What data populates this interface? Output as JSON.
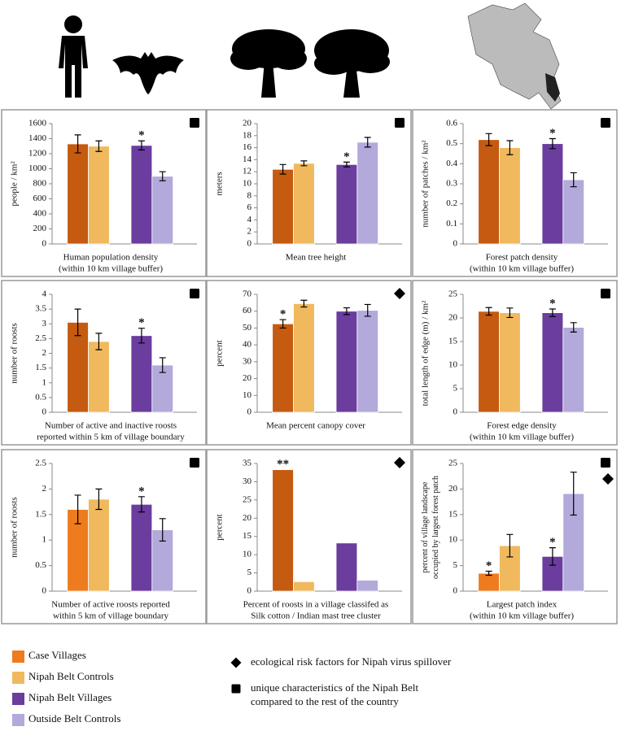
{
  "chart_data": [
    {
      "type": "bar",
      "ylabel": [
        "people / km²"
      ],
      "xlabel": [
        "Human population density",
        "(within 10 km village buffer)"
      ],
      "values": [
        1330,
        1300,
        1310,
        900
      ],
      "errors": [
        120,
        70,
        60,
        60
      ],
      "stars": [
        null,
        null,
        "*",
        null
      ],
      "colors": [
        "#c55a11",
        "#f0b95e",
        "#6a3d9e",
        "#b3a9da"
      ],
      "ylim": [
        0,
        1600
      ],
      "yticks": [
        0,
        200,
        400,
        600,
        800,
        1000,
        1200,
        1400,
        1600
      ],
      "markers": [
        "square"
      ]
    },
    {
      "type": "bar",
      "ylabel": [
        "meters"
      ],
      "xlabel": [
        "Mean tree height"
      ],
      "values": [
        12.4,
        13.4,
        13.2,
        16.9
      ],
      "errors": [
        0.8,
        0.4,
        0.4,
        0.8
      ],
      "stars": [
        null,
        null,
        "*",
        null
      ],
      "colors": [
        "#c55a11",
        "#f0b95e",
        "#6a3d9e",
        "#b3a9da"
      ],
      "ylim": [
        0,
        20
      ],
      "yticks": [
        0,
        2,
        4,
        6,
        8,
        10,
        12,
        14,
        16,
        18,
        20
      ],
      "markers": [
        "square"
      ]
    },
    {
      "type": "bar",
      "ylabel": [
        "number of patches / km²"
      ],
      "xlabel": [
        "Forest patch density",
        "(within 10 km village buffer)"
      ],
      "values": [
        0.52,
        0.48,
        0.5,
        0.32
      ],
      "errors": [
        0.03,
        0.035,
        0.025,
        0.035
      ],
      "stars": [
        null,
        null,
        "*",
        null
      ],
      "colors": [
        "#c55a11",
        "#f0b95e",
        "#6a3d9e",
        "#b3a9da"
      ],
      "ylim": [
        0,
        0.6
      ],
      "yticks": [
        0,
        0.1,
        0.2,
        0.3,
        0.4,
        0.5,
        0.6
      ],
      "markers": [
        "square"
      ]
    },
    {
      "type": "bar",
      "ylabel": [
        "number of roosts"
      ],
      "xlabel": [
        "Number of active and inactive roosts",
        "reported within 5 km of village boundary"
      ],
      "values": [
        3.05,
        2.4,
        2.6,
        1.6
      ],
      "errors": [
        0.45,
        0.28,
        0.25,
        0.25
      ],
      "stars": [
        null,
        null,
        "*",
        null
      ],
      "colors": [
        "#c55a11",
        "#f0b95e",
        "#6a3d9e",
        "#b3a9da"
      ],
      "ylim": [
        0,
        4
      ],
      "yticks": [
        0,
        0.5,
        1,
        1.5,
        2,
        2.5,
        3,
        3.5,
        4
      ],
      "markers": [
        "square"
      ]
    },
    {
      "type": "bar",
      "ylabel": [
        "percent"
      ],
      "xlabel": [
        "Mean percent canopy cover"
      ],
      "values": [
        52.5,
        64.5,
        60,
        60.5
      ],
      "errors": [
        2.5,
        2,
        2,
        3.5
      ],
      "stars": [
        "*",
        null,
        null,
        null
      ],
      "colors": [
        "#c55a11",
        "#f0b95e",
        "#6a3d9e",
        "#b3a9da"
      ],
      "ylim": [
        0,
        70
      ],
      "yticks": [
        0,
        10,
        20,
        30,
        40,
        50,
        60,
        70
      ],
      "markers": [
        "diamond"
      ]
    },
    {
      "type": "bar",
      "ylabel": [
        "total length of edge (m) / km²"
      ],
      "xlabel": [
        "Forest edge density",
        "(within 10 km village buffer)"
      ],
      "values": [
        21.4,
        21.1,
        21.1,
        18
      ],
      "errors": [
        0.8,
        1,
        0.8,
        1
      ],
      "stars": [
        null,
        null,
        "*",
        null
      ],
      "colors": [
        "#c55a11",
        "#f0b95e",
        "#6a3d9e",
        "#b3a9da"
      ],
      "ylim": [
        0,
        25
      ],
      "yticks": [
        0,
        5,
        10,
        15,
        20,
        25
      ],
      "markers": [
        "square"
      ]
    },
    {
      "type": "bar",
      "ylabel": [
        "number of roosts"
      ],
      "xlabel": [
        "Number of active roosts reported",
        "within 5 km of village boundary"
      ],
      "values": [
        1.6,
        1.8,
        1.7,
        1.2
      ],
      "errors": [
        0.28,
        0.2,
        0.15,
        0.22
      ],
      "stars": [
        null,
        null,
        "*",
        null
      ],
      "colors": [
        "#ee7b1d",
        "#f0b95e",
        "#6a3d9e",
        "#b3a9da"
      ],
      "ylim": [
        0,
        2.5
      ],
      "yticks": [
        0,
        0.5,
        1,
        1.5,
        2,
        2.5
      ],
      "markers": [
        "square"
      ]
    },
    {
      "type": "bar",
      "ylabel": [
        "percent"
      ],
      "xlabel": [
        "Percent of roosts in a village classifed as",
        "Silk cotton / Indian mast tree cluster"
      ],
      "values": [
        33.3,
        2.6,
        13.2,
        3.0
      ],
      "stars": [
        "**",
        null,
        null,
        null
      ],
      "colors": [
        "#c55a11",
        "#f0b95e",
        "#6a3d9e",
        "#b3a9da"
      ],
      "ylim": [
        0,
        35
      ],
      "yticks": [
        0,
        5,
        10,
        15,
        20,
        25,
        30,
        35
      ],
      "markers": [
        "diamond"
      ]
    },
    {
      "type": "bar",
      "ylabel": [
        "percent of village landscape",
        "occupied by largest forest patch"
      ],
      "xlabel": [
        "Largest patch index",
        "(within 10 km village buffer)"
      ],
      "values": [
        3.5,
        8.9,
        6.8,
        19.1
      ],
      "errors": [
        0.4,
        2.2,
        1.7,
        4.2
      ],
      "stars": [
        "*",
        null,
        "*",
        null
      ],
      "colors": [
        "#ee7b1d",
        "#f0b95e",
        "#6a3d9e",
        "#b3a9da"
      ],
      "ylim": [
        0,
        25
      ],
      "yticks": [
        0,
        5,
        10,
        15,
        20,
        25
      ],
      "markers": [
        "square",
        "diamond"
      ]
    }
  ],
  "legend": {
    "series": [
      {
        "name": "Case Villages",
        "color": "#ee7b1d"
      },
      {
        "name": "Nipah Belt Controls",
        "color": "#f0b95e"
      },
      {
        "name": "Nipah Belt Villages",
        "color": "#6a3d9e"
      },
      {
        "name": "Outside Belt Controls",
        "color": "#b3a9da"
      }
    ],
    "symbols": [
      {
        "shape": "diamond",
        "label": [
          "ecological risk factors for Nipah virus spillover"
        ]
      },
      {
        "shape": "square",
        "label": [
          "unique characteristics of the Nipah Belt",
          "compared to the rest of the country"
        ]
      }
    ]
  }
}
